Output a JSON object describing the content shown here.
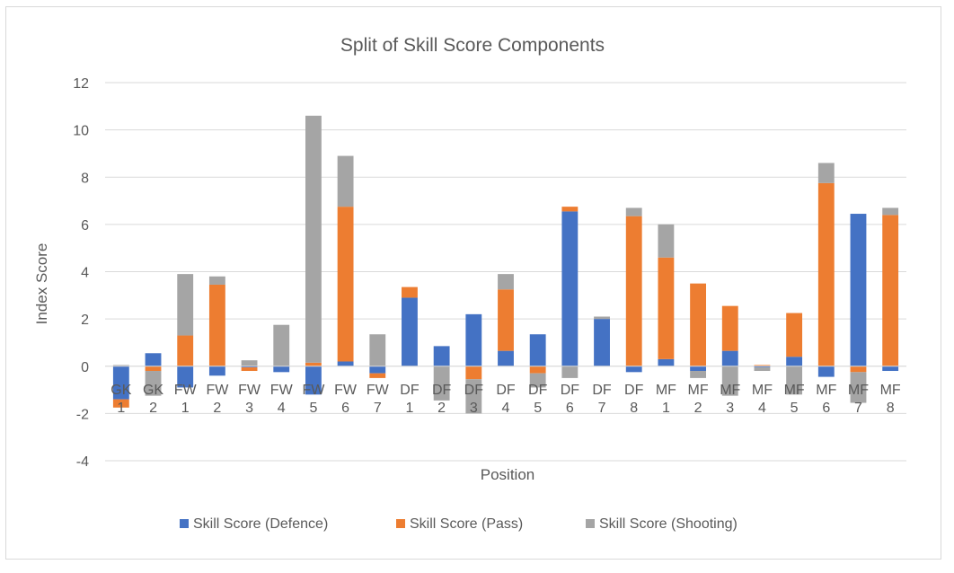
{
  "chart_data": {
    "type": "bar",
    "stacked": true,
    "title": "Split of Skill Score Components",
    "xlabel": "Position",
    "ylabel": "Index Score",
    "ylim": [
      -4,
      12
    ],
    "yticks": [
      -4,
      -2,
      0,
      2,
      4,
      6,
      8,
      10,
      12
    ],
    "grid": true,
    "legend": "bottom",
    "categories": [
      [
        "GK",
        "1"
      ],
      [
        "GK",
        "2"
      ],
      [
        "FW",
        "1"
      ],
      [
        "FW",
        "2"
      ],
      [
        "FW",
        "3"
      ],
      [
        "FW",
        "4"
      ],
      [
        "FW",
        "5"
      ],
      [
        "FW",
        "6"
      ],
      [
        "FW",
        "7"
      ],
      [
        "DF",
        "1"
      ],
      [
        "DF",
        "2"
      ],
      [
        "DF",
        "3"
      ],
      [
        "DF",
        "4"
      ],
      [
        "DF",
        "5"
      ],
      [
        "DF",
        "6"
      ],
      [
        "DF",
        "7"
      ],
      [
        "DF",
        "8"
      ],
      [
        "MF",
        "1"
      ],
      [
        "MF",
        "2"
      ],
      [
        "MF",
        "3"
      ],
      [
        "MF",
        "4"
      ],
      [
        "MF",
        "5"
      ],
      [
        "MF",
        "6"
      ],
      [
        "MF",
        "7"
      ],
      [
        "MF",
        "8"
      ]
    ],
    "series": [
      {
        "name": "Skill Score (Defence)",
        "color": "#4472c4",
        "values": [
          -1.4,
          0.55,
          -0.9,
          -0.4,
          -0.05,
          -0.25,
          -1.2,
          0.2,
          -0.3,
          2.9,
          0.85,
          2.2,
          0.65,
          1.35,
          6.55,
          2.0,
          -0.25,
          0.3,
          -0.2,
          0.65,
          -0.05,
          0.4,
          -0.45,
          6.45,
          -0.2
        ]
      },
      {
        "name": "Skill Score (Pass)",
        "color": "#ed7d31",
        "values": [
          -0.35,
          -0.2,
          1.3,
          3.45,
          -0.15,
          0.0,
          0.15,
          6.55,
          -0.2,
          0.45,
          0.0,
          -0.55,
          2.6,
          -0.3,
          0.2,
          0.0,
          6.35,
          4.3,
          3.5,
          1.9,
          0.05,
          1.85,
          7.75,
          -0.25,
          6.4
        ]
      },
      {
        "name": "Skill Score (Shooting)",
        "color": "#a5a5a5",
        "values": [
          0.05,
          -1.05,
          2.6,
          0.35,
          0.25,
          1.75,
          10.45,
          2.15,
          1.35,
          0.0,
          -1.45,
          -1.45,
          0.65,
          -0.6,
          -0.5,
          0.1,
          0.35,
          1.4,
          -0.3,
          -1.25,
          -0.15,
          -1.2,
          0.85,
          -1.3,
          0.3
        ]
      }
    ]
  }
}
